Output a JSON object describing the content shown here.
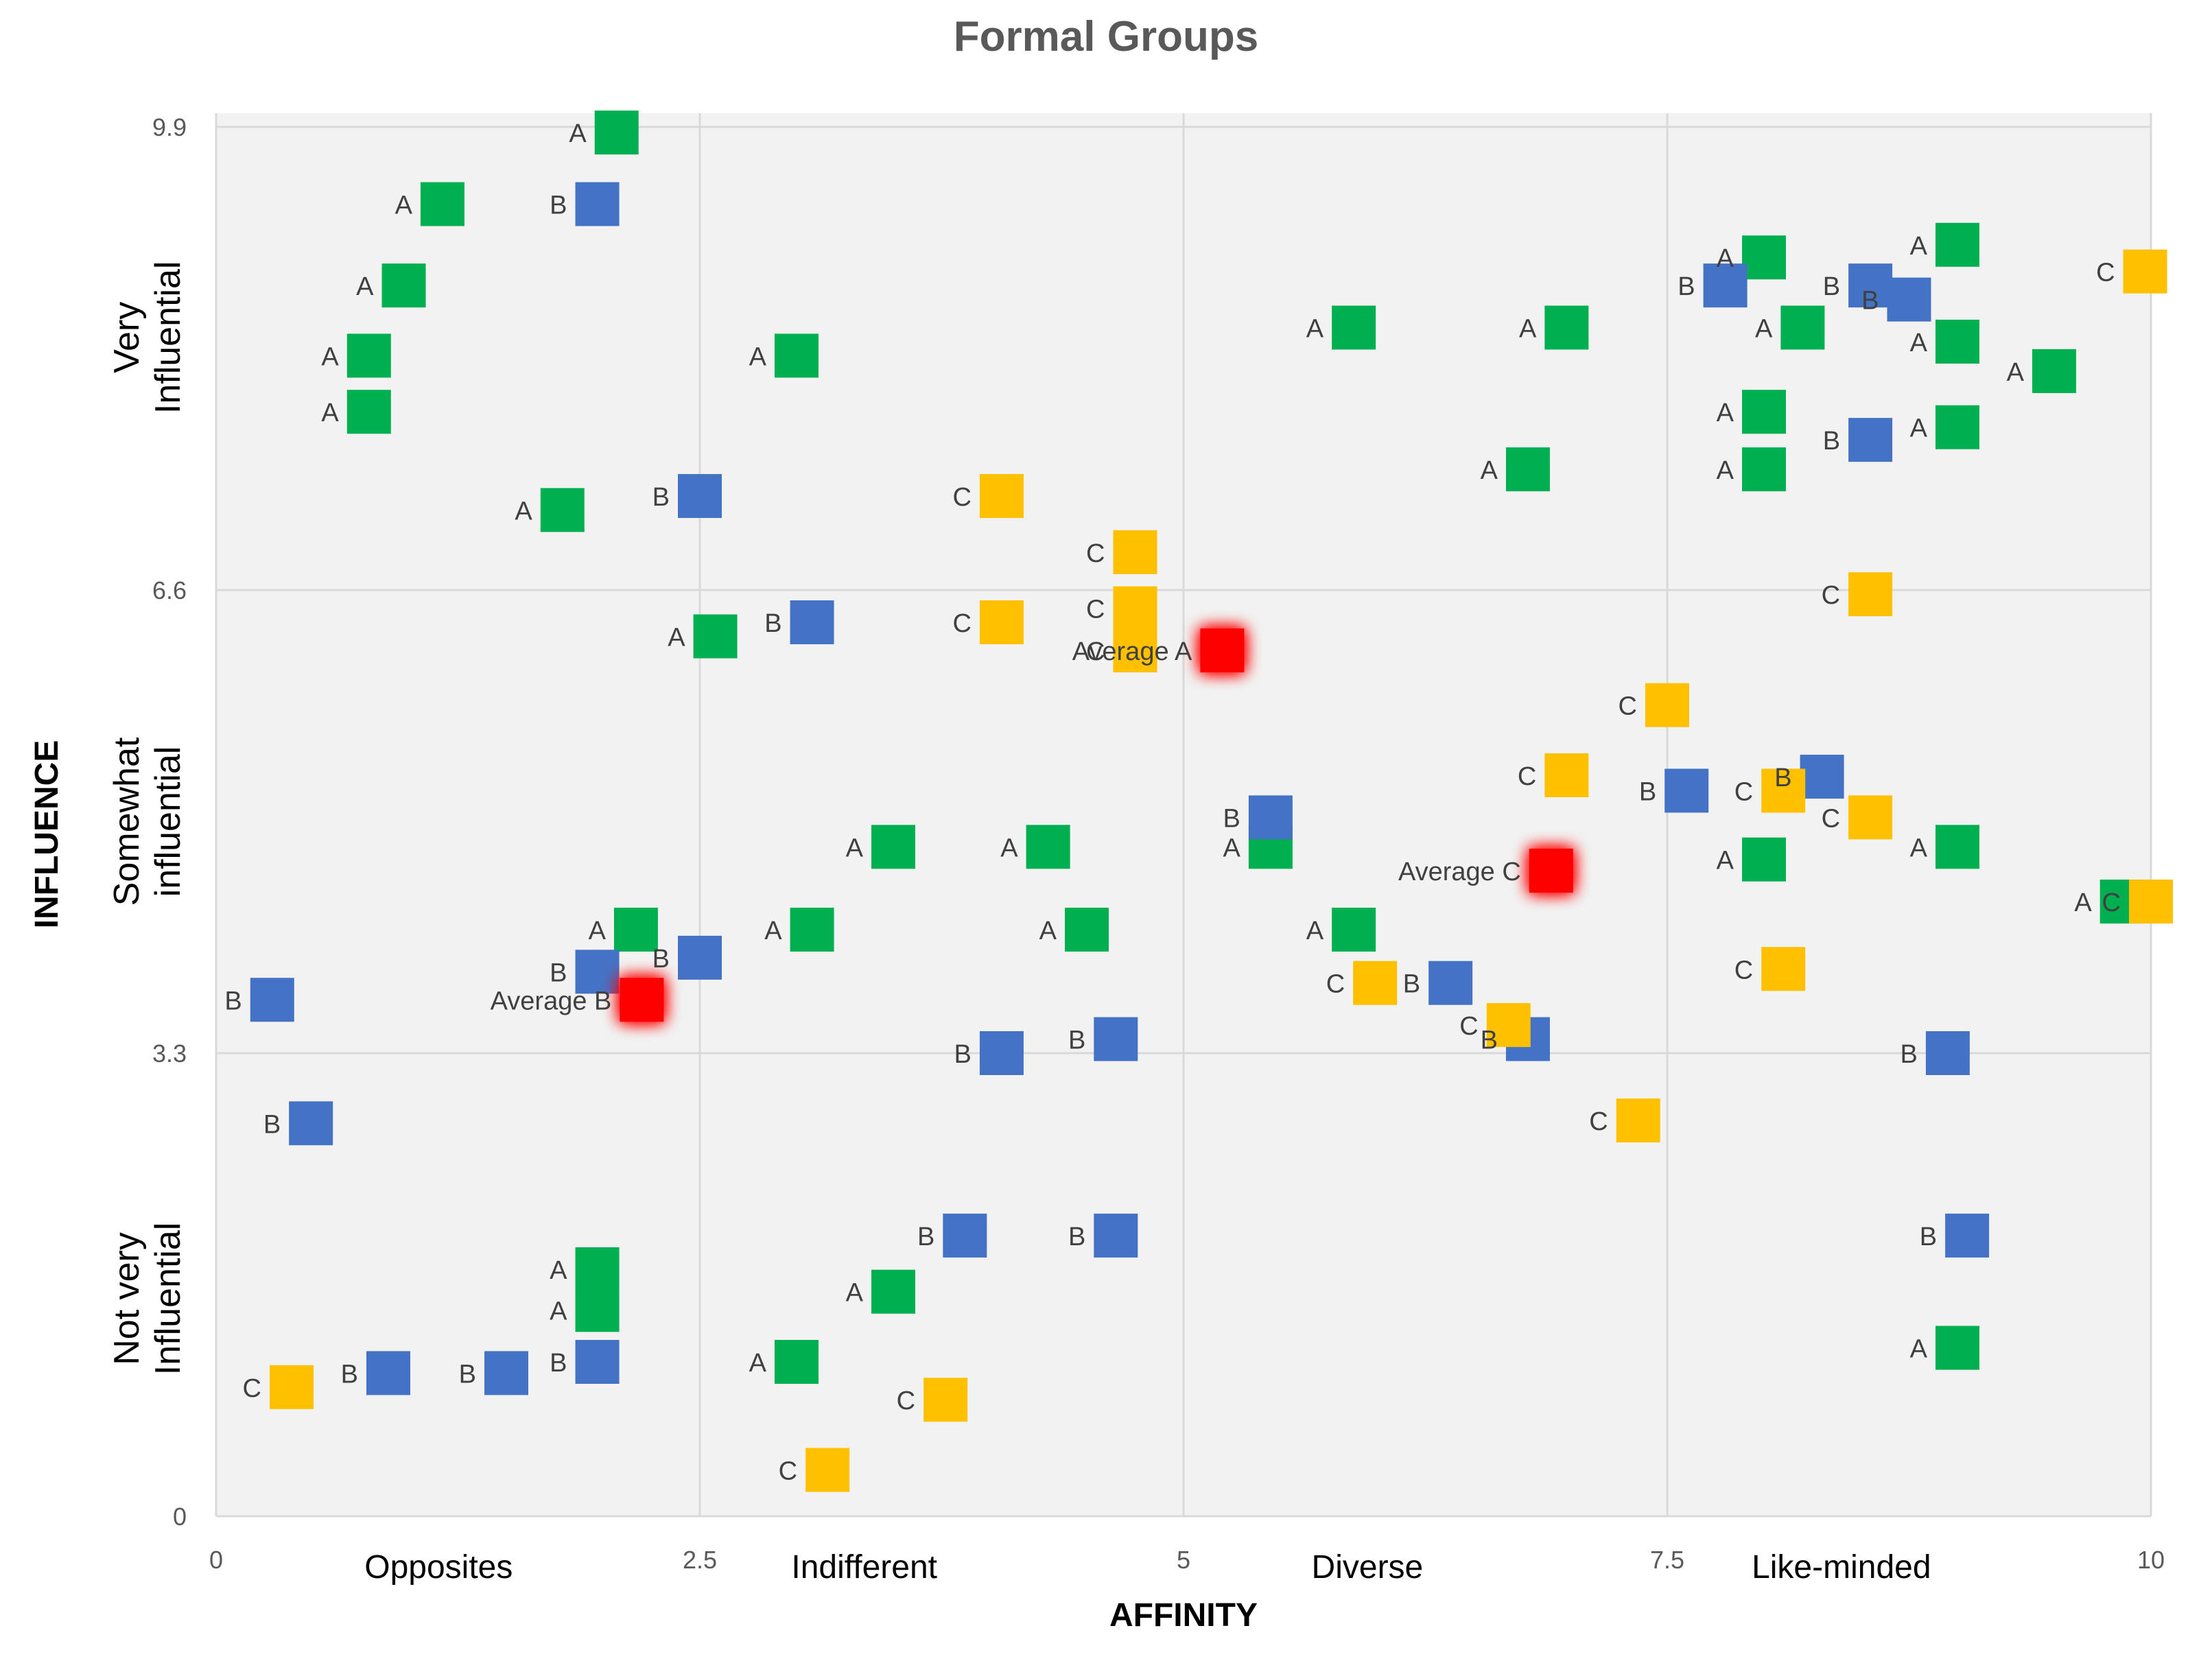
{
  "chart_data": {
    "type": "scatter",
    "title": "Formal Groups",
    "xlabel": "AFFINITY",
    "ylabel": "INFLUENCE",
    "xlim": [
      0,
      10
    ],
    "ylim": [
      0,
      9.9
    ],
    "grid": true,
    "x_ticks": [
      {
        "value": 0,
        "label": "0"
      },
      {
        "value": 2.5,
        "label": "2.5"
      },
      {
        "value": 5,
        "label": "5"
      },
      {
        "value": 7.5,
        "label": "7.5"
      },
      {
        "value": 10,
        "label": "10"
      }
    ],
    "y_ticks": [
      {
        "value": 0,
        "label": "0"
      },
      {
        "value": 3.3,
        "label": "3.3"
      },
      {
        "value": 6.6,
        "label": "6.6"
      },
      {
        "value": 9.9,
        "label": "9.9"
      }
    ],
    "x_categories": [
      {
        "value": 1.15,
        "label": "Opposites"
      },
      {
        "value": 3.35,
        "label": "Indifferent"
      },
      {
        "value": 5.95,
        "label": "Diverse"
      },
      {
        "value": 8.4,
        "label": "Like-minded"
      }
    ],
    "y_categories": [
      {
        "value": 8.4,
        "line1": "Very",
        "line2": "Influential"
      },
      {
        "value": 4.95,
        "line1": "Somewhat",
        "line2": "influential"
      },
      {
        "value": 1.55,
        "line1": "Not very",
        "line2": "Influential"
      }
    ],
    "colors": {
      "A": "#00b050",
      "B": "#4472c4",
      "C": "#ffc000",
      "Average": "#ff0000",
      "plot_bg": "#f2f2f2",
      "grid": "#d9d9d9"
    },
    "series": [
      {
        "name": "A",
        "color": "#00b050",
        "points": [
          {
            "x": 2.07,
            "y": 9.86,
            "label": "A"
          },
          {
            "x": 1.17,
            "y": 9.35,
            "label": "A"
          },
          {
            "x": 0.97,
            "y": 8.77,
            "label": "A"
          },
          {
            "x": 0.79,
            "y": 8.27,
            "label": "A"
          },
          {
            "x": 0.79,
            "y": 7.87,
            "label": "A"
          },
          {
            "x": 3.0,
            "y": 8.27,
            "label": "A"
          },
          {
            "x": 1.79,
            "y": 7.17,
            "label": "A"
          },
          {
            "x": 2.58,
            "y": 6.27,
            "label": "A"
          },
          {
            "x": 5.88,
            "y": 8.47,
            "label": "A"
          },
          {
            "x": 6.98,
            "y": 8.47,
            "label": "A"
          },
          {
            "x": 6.78,
            "y": 7.46,
            "label": "A"
          },
          {
            "x": 8.0,
            "y": 8.97,
            "label": "A"
          },
          {
            "x": 8.2,
            "y": 8.47,
            "label": "A"
          },
          {
            "x": 8.0,
            "y": 7.87,
            "label": "A"
          },
          {
            "x": 8.0,
            "y": 7.46,
            "label": "A"
          },
          {
            "x": 9.0,
            "y": 9.06,
            "label": "A"
          },
          {
            "x": 9.0,
            "y": 8.37,
            "label": "A"
          },
          {
            "x": 9.0,
            "y": 7.76,
            "label": "A"
          },
          {
            "x": 9.5,
            "y": 8.16,
            "label": "A"
          },
          {
            "x": 3.5,
            "y": 4.77,
            "label": "A"
          },
          {
            "x": 4.3,
            "y": 4.77,
            "label": "A"
          },
          {
            "x": 5.45,
            "y": 4.77,
            "label": "A"
          },
          {
            "x": 2.17,
            "y": 4.18,
            "label": "A"
          },
          {
            "x": 3.08,
            "y": 4.18,
            "label": "A"
          },
          {
            "x": 4.5,
            "y": 4.18,
            "label": "A"
          },
          {
            "x": 5.88,
            "y": 4.18,
            "label": "A"
          },
          {
            "x": 8.0,
            "y": 4.68,
            "label": "A"
          },
          {
            "x": 9.0,
            "y": 4.77,
            "label": "A"
          },
          {
            "x": 9.85,
            "y": 4.38,
            "label": "A"
          },
          {
            "x": 1.97,
            "y": 1.76,
            "label": "A"
          },
          {
            "x": 1.97,
            "y": 1.47,
            "label": "A"
          },
          {
            "x": 3.5,
            "y": 1.6,
            "label": "A"
          },
          {
            "x": 3.0,
            "y": 1.1,
            "label": "A"
          },
          {
            "x": 9.0,
            "y": 1.2,
            "label": "A"
          }
        ]
      },
      {
        "name": "B",
        "color": "#4472c4",
        "points": [
          {
            "x": 1.97,
            "y": 9.35,
            "label": "B"
          },
          {
            "x": 2.5,
            "y": 7.27,
            "label": "B"
          },
          {
            "x": 3.08,
            "y": 6.37,
            "label": "B"
          },
          {
            "x": 7.8,
            "y": 8.77,
            "label": "B"
          },
          {
            "x": 8.55,
            "y": 8.77,
            "label": "B"
          },
          {
            "x": 8.75,
            "y": 8.67,
            "label": "B"
          },
          {
            "x": 8.55,
            "y": 7.67,
            "label": "B"
          },
          {
            "x": 5.45,
            "y": 4.98,
            "label": "B"
          },
          {
            "x": 7.6,
            "y": 5.17,
            "label": "B"
          },
          {
            "x": 8.3,
            "y": 5.27,
            "label": "B"
          },
          {
            "x": 0.29,
            "y": 3.68,
            "label": "B"
          },
          {
            "x": 1.97,
            "y": 3.88,
            "label": "B"
          },
          {
            "x": 2.5,
            "y": 3.98,
            "label": "B"
          },
          {
            "x": 6.38,
            "y": 3.8,
            "label": "B"
          },
          {
            "x": 4.06,
            "y": 3.3,
            "label": "B"
          },
          {
            "x": 4.65,
            "y": 3.4,
            "label": "B"
          },
          {
            "x": 6.78,
            "y": 3.4,
            "label": "B"
          },
          {
            "x": 8.95,
            "y": 3.3,
            "label": "B"
          },
          {
            "x": 0.49,
            "y": 2.8,
            "label": "B"
          },
          {
            "x": 3.87,
            "y": 2.0,
            "label": "B"
          },
          {
            "x": 4.65,
            "y": 2.0,
            "label": "B"
          },
          {
            "x": 9.05,
            "y": 2.0,
            "label": "B"
          },
          {
            "x": 0.89,
            "y": 1.02,
            "label": "B"
          },
          {
            "x": 1.5,
            "y": 1.02,
            "label": "B"
          },
          {
            "x": 1.97,
            "y": 1.1,
            "label": "B"
          }
        ]
      },
      {
        "name": "C",
        "color": "#ffc000",
        "points": [
          {
            "x": 9.97,
            "y": 8.87,
            "label": "C"
          },
          {
            "x": 4.06,
            "y": 7.27,
            "label": "C"
          },
          {
            "x": 4.75,
            "y": 6.87,
            "label": "C"
          },
          {
            "x": 4.75,
            "y": 6.47,
            "label": "C"
          },
          {
            "x": 4.06,
            "y": 6.37,
            "label": "C"
          },
          {
            "x": 4.75,
            "y": 6.17,
            "label": "C"
          },
          {
            "x": 8.55,
            "y": 6.57,
            "label": "C"
          },
          {
            "x": 7.5,
            "y": 5.78,
            "label": "C"
          },
          {
            "x": 6.98,
            "y": 5.28,
            "label": "C"
          },
          {
            "x": 8.1,
            "y": 5.17,
            "label": "C"
          },
          {
            "x": 8.55,
            "y": 4.98,
            "label": "C"
          },
          {
            "x": 10.0,
            "y": 4.38,
            "label": "C"
          },
          {
            "x": 5.99,
            "y": 3.8,
            "label": "C"
          },
          {
            "x": 8.1,
            "y": 3.9,
            "label": "C"
          },
          {
            "x": 6.68,
            "y": 3.5,
            "label": "C"
          },
          {
            "x": 7.35,
            "y": 2.82,
            "label": "C"
          },
          {
            "x": 0.39,
            "y": 0.92,
            "label": "C"
          },
          {
            "x": 3.77,
            "y": 0.83,
            "label": "C"
          },
          {
            "x": 3.16,
            "y": 0.33,
            "label": "C"
          }
        ]
      },
      {
        "name": "Average",
        "color": "#ff0000",
        "points": [
          {
            "x": 5.2,
            "y": 6.17,
            "label": "Average A"
          },
          {
            "x": 2.2,
            "y": 3.68,
            "label": "Average B"
          },
          {
            "x": 6.9,
            "y": 4.6,
            "label": "Average C"
          }
        ]
      }
    ]
  }
}
